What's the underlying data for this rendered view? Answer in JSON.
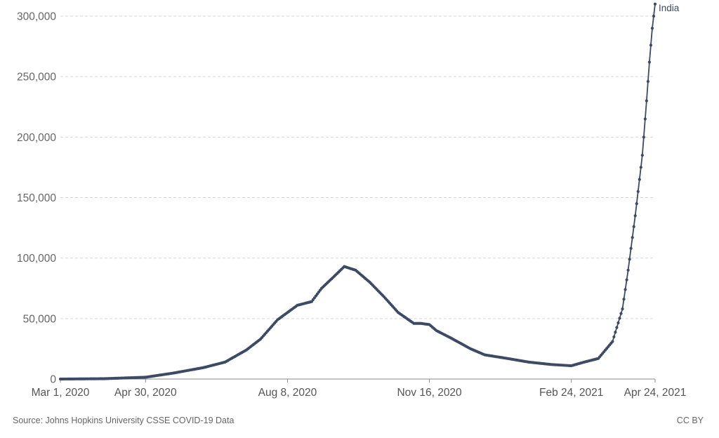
{
  "chart_data": {
    "type": "line",
    "title": "",
    "xlabel": "",
    "ylabel": "",
    "x_tick_labels": [
      "Mar 1, 2020",
      "Apr 30, 2020",
      "Aug 8, 2020",
      "Nov 16, 2020",
      "Feb 24, 2021",
      "Apr 24, 2021"
    ],
    "y_tick_labels": [
      "0",
      "50,000",
      "100,000",
      "150,000",
      "200,000",
      "250,000",
      "300,000"
    ],
    "ylim": [
      0,
      300000
    ],
    "xlim": [
      "2020-03-01",
      "2021-04-24"
    ],
    "grid": true,
    "series": [
      {
        "name": "India",
        "color": "#3c4a66",
        "x": [
          "2020-03-01",
          "2020-04-01",
          "2020-04-30",
          "2020-05-20",
          "2020-06-10",
          "2020-06-25",
          "2020-07-10",
          "2020-07-20",
          "2020-08-01",
          "2020-08-08",
          "2020-08-15",
          "2020-08-25",
          "2020-09-01",
          "2020-09-10",
          "2020-09-17",
          "2020-09-25",
          "2020-10-05",
          "2020-10-15",
          "2020-10-25",
          "2020-11-05",
          "2020-11-10",
          "2020-11-16",
          "2020-11-21",
          "2020-12-01",
          "2020-12-15",
          "2020-12-25",
          "2021-01-10",
          "2021-01-25",
          "2021-02-10",
          "2021-02-24",
          "2021-03-05",
          "2021-03-15",
          "2021-03-25",
          "2021-04-01",
          "2021-04-05",
          "2021-04-10",
          "2021-04-15",
          "2021-04-18",
          "2021-04-20",
          "2021-04-22",
          "2021-04-24"
        ],
        "values": [
          0,
          300,
          1500,
          5000,
          9500,
          14000,
          24000,
          33000,
          49000,
          55000,
          61000,
          64000,
          75000,
          85000,
          93000,
          90000,
          80000,
          68000,
          55000,
          46000,
          46000,
          45000,
          40000,
          34000,
          25000,
          20000,
          17000,
          14000,
          12000,
          11000,
          14000,
          17000,
          31000,
          58000,
          90000,
          135000,
          185000,
          230000,
          262000,
          290000,
          310000
        ]
      }
    ]
  },
  "footer": {
    "source": "Source: Johns Hopkins University CSSE COVID-19 Data",
    "license": "CC BY"
  }
}
